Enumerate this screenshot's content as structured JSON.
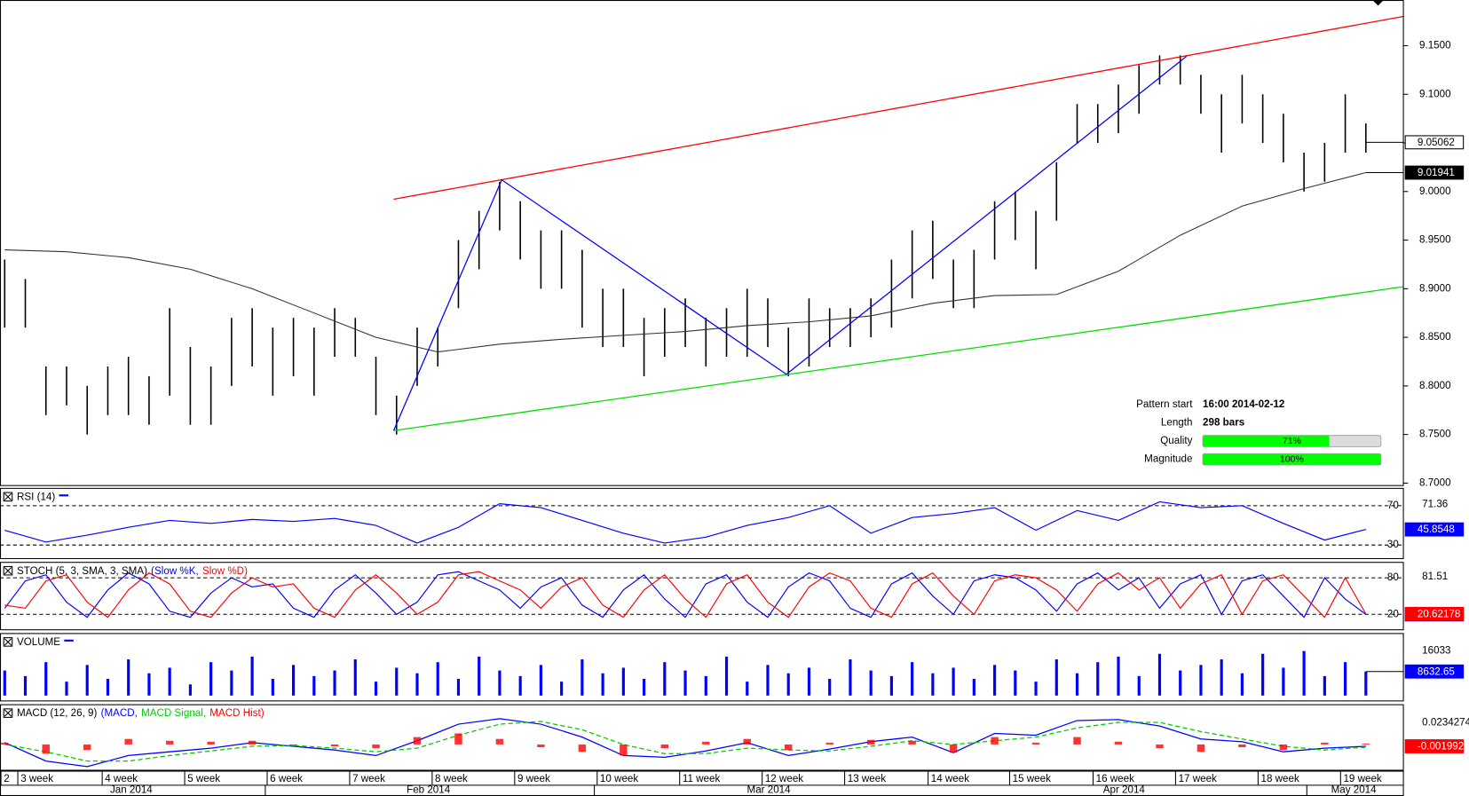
{
  "chart_data": [
    {
      "type": "ohlc",
      "ylim": [
        8.697,
        9.197
      ],
      "yticks": [
        {
          "value": 8.7,
          "label": "8.7000"
        },
        {
          "value": 8.75,
          "label": "8.7500"
        },
        {
          "value": 8.8,
          "label": "8.8000"
        },
        {
          "value": 8.85,
          "label": "8.8500"
        },
        {
          "value": 8.9,
          "label": "8.9000"
        },
        {
          "value": 8.95,
          "label": "8.9500"
        },
        {
          "value": 9.0,
          "label": "9.0000"
        },
        {
          "value": 9.05,
          "label": "9.0500"
        },
        {
          "value": 9.1,
          "label": "9.1000"
        },
        {
          "value": 9.15,
          "label": "9.1500"
        }
      ],
      "color": "#000000",
      "high": [
        8.93,
        8.91,
        8.82,
        8.82,
        8.8,
        8.82,
        8.83,
        8.81,
        8.88,
        8.84,
        8.82,
        8.87,
        8.88,
        8.86,
        8.87,
        8.86,
        8.88,
        8.87,
        8.83,
        8.79,
        8.86,
        8.86,
        8.95,
        8.98,
        9.01,
        8.99,
        8.96,
        8.96,
        8.94,
        8.9,
        8.9,
        8.87,
        8.88,
        8.89,
        8.87,
        8.88,
        8.9,
        8.89,
        8.86,
        8.89,
        8.88,
        8.88,
        8.89,
        8.93,
        8.96,
        8.97,
        8.93,
        8.94,
        8.99,
        9.0,
        8.98,
        9.03,
        9.09,
        9.09,
        9.11,
        9.13,
        9.14,
        9.14,
        9.12,
        9.1,
        9.12,
        9.1,
        9.08,
        9.04,
        9.05,
        9.1,
        9.07
      ],
      "low": [
        8.86,
        8.86,
        8.77,
        8.78,
        8.75,
        8.77,
        8.77,
        8.76,
        8.79,
        8.76,
        8.76,
        8.8,
        8.82,
        8.79,
        8.81,
        8.79,
        8.83,
        8.83,
        8.77,
        8.75,
        8.8,
        8.82,
        8.88,
        8.92,
        8.96,
        8.93,
        8.9,
        8.9,
        8.86,
        8.84,
        8.84,
        8.81,
        8.83,
        8.84,
        8.82,
        8.83,
        8.83,
        8.84,
        8.81,
        8.82,
        8.84,
        8.84,
        8.85,
        8.86,
        8.89,
        8.91,
        8.88,
        8.88,
        8.93,
        8.95,
        8.92,
        8.97,
        9.05,
        9.05,
        9.06,
        9.08,
        9.11,
        9.11,
        9.08,
        9.04,
        9.07,
        9.05,
        9.03,
        9.0,
        9.01,
        9.04,
        9.04
      ],
      "last": 9.05062,
      "ma": {
        "color": "#333333",
        "values": [
          8.94,
          8.938,
          8.932,
          8.92,
          8.9,
          8.875,
          8.85,
          8.835,
          8.843,
          8.848,
          8.852,
          8.856,
          8.862,
          8.866,
          8.872,
          8.885,
          8.893,
          8.894,
          8.918,
          8.955,
          8.985,
          9.003,
          9.01941
        ]
      },
      "trend_lines": [
        {
          "color": "#ff0000",
          "x": [
            18.86,
            67.8
          ],
          "y": [
            8.992,
            9.18
          ]
        },
        {
          "color": "#00dd00",
          "x": [
            18.86,
            67.8
          ],
          "y": [
            8.754,
            8.902
          ]
        },
        {
          "color": "#0000ff",
          "x": [
            18.86,
            24.1,
            37.9,
            57.3
          ],
          "y": [
            8.754,
            9.012,
            8.812,
            9.139
          ]
        }
      ]
    },
    {
      "type": "line",
      "title": "RSI (14)",
      "ylim": [
        15.7,
        88.1
      ],
      "yticks": [
        30,
        70
      ],
      "max": 71.36,
      "series": [
        {
          "color": "#0000ff",
          "values": [
            45,
            33,
            40,
            48,
            55,
            52,
            56,
            54,
            57,
            50,
            32,
            48,
            72,
            68,
            55,
            42,
            32,
            38,
            50,
            58,
            70,
            42,
            58,
            62,
            68,
            45,
            65,
            55,
            74,
            68,
            70,
            52,
            35,
            45.8548
          ]
        }
      ]
    },
    {
      "type": "line",
      "title": "STOCH (5, 3, SMA, 3, SMA)",
      "legend": [
        "(Slow %K,",
        "Slow %D)"
      ],
      "ylim": [
        -6.2,
        106.2
      ],
      "yticks": [
        20,
        80
      ],
      "max": 81.51,
      "series": [
        {
          "color": "#0000ff",
          "values": [
            30,
            75,
            85,
            40,
            15,
            60,
            88,
            70,
            25,
            15,
            55,
            80,
            65,
            70,
            30,
            15,
            60,
            85,
            55,
            20,
            40,
            85,
            90,
            75,
            60,
            30,
            65,
            80,
            35,
            15,
            60,
            85,
            45,
            15,
            70,
            85,
            40,
            15,
            65,
            88,
            75,
            30,
            15,
            70,
            88,
            50,
            20,
            75,
            85,
            80,
            60,
            25,
            70,
            88,
            60,
            80,
            30,
            70,
            85,
            20,
            75,
            85,
            50,
            15,
            80,
            45,
            19.8
          ]
        },
        {
          "color": "#ff0000",
          "values": [
            35,
            30,
            75,
            85,
            40,
            15,
            60,
            88,
            70,
            25,
            15,
            55,
            80,
            65,
            70,
            30,
            15,
            60,
            85,
            55,
            20,
            40,
            85,
            90,
            75,
            60,
            30,
            65,
            80,
            35,
            15,
            60,
            85,
            45,
            15,
            70,
            85,
            40,
            15,
            65,
            88,
            75,
            30,
            15,
            70,
            88,
            50,
            20,
            75,
            85,
            80,
            60,
            25,
            70,
            88,
            60,
            80,
            30,
            70,
            85,
            20,
            75,
            85,
            50,
            15,
            80,
            20.62178
          ]
        }
      ]
    },
    {
      "type": "bar",
      "title": "VOLUME",
      "ylim": [
        -2100,
        22450
      ],
      "max": 16033,
      "color": "#0000ff",
      "values": [
        9000,
        7000,
        12000,
        5000,
        11000,
        6000,
        13000,
        8000,
        10000,
        4000,
        12000,
        9000,
        14000,
        6000,
        11000,
        7000,
        9000,
        13000,
        5000,
        10000,
        8000,
        12000,
        6000,
        14000,
        9000,
        7000,
        11000,
        5000,
        13000,
        8000,
        10000,
        6000,
        12000,
        9000,
        7000,
        14000,
        5000,
        11000,
        8000,
        10000,
        6000,
        13000,
        9000,
        7000,
        12000,
        8000,
        10000,
        6000,
        11000,
        9000,
        5000,
        13000,
        8000,
        12000,
        14000,
        7000,
        15000,
        9000,
        11000,
        13000,
        8000,
        15000,
        10000,
        16000,
        7000,
        12000,
        8632.65
      ]
    },
    {
      "type": "combo",
      "title": "MACD (12, 26, 9)",
      "legend": [
        "(MACD,",
        "MACD Signal,",
        "MACD Hist)"
      ],
      "ylim": [
        -0.0285,
        0.0437
      ],
      "max": 0.0234274,
      "series": [
        {
          "type": "line",
          "color": "#0000ff",
          "values": [
            0.002,
            -0.018,
            -0.024,
            -0.012,
            -0.008,
            -0.004,
            0.002,
            -0.002,
            -0.006,
            -0.012,
            0.004,
            0.022,
            0.028,
            0.022,
            0.008,
            -0.012,
            -0.014,
            -0.007,
            0.002,
            -0.012,
            -0.005,
            0.003,
            0.008,
            -0.009,
            0.012,
            0.01,
            0.026,
            0.027,
            0.02,
            0.006,
            0.003,
            -0.008,
            -0.004,
            -0.0019929
          ]
        },
        {
          "type": "dashed",
          "color": "#00cc00",
          "values": [
            0.0,
            -0.008,
            -0.018,
            -0.018,
            -0.012,
            -0.007,
            -0.002,
            -0.001,
            -0.004,
            -0.008,
            -0.004,
            0.01,
            0.022,
            0.025,
            0.016,
            0.0,
            -0.01,
            -0.01,
            -0.004,
            -0.006,
            -0.007,
            -0.002,
            0.004,
            0.0,
            0.004,
            0.008,
            0.018,
            0.024,
            0.024,
            0.014,
            0.006,
            -0.002,
            -0.006,
            -0.003
          ]
        },
        {
          "type": "bar",
          "color": "#ff0000",
          "values": [
            0.002,
            -0.01,
            -0.006,
            0.006,
            0.004,
            0.003,
            0.004,
            -0.001,
            -0.002,
            -0.004,
            0.008,
            0.012,
            0.006,
            -0.003,
            -0.008,
            -0.012,
            -0.004,
            0.003,
            0.006,
            -0.006,
            0.002,
            0.005,
            0.004,
            -0.009,
            0.008,
            0.002,
            0.008,
            0.003,
            -0.004,
            -0.008,
            -0.003,
            -0.006,
            0.002,
            0.001
          ]
        }
      ]
    }
  ],
  "x_axis": {
    "weeks": [
      "2",
      "3 week",
      "4 week",
      "5 week",
      "6 week",
      "7 week",
      "8 week",
      "9 week",
      "10 week",
      "11 week",
      "12 week",
      "13 week",
      "14 week",
      "15 week",
      "16 week",
      "17 week",
      "18 week",
      "19 week"
    ],
    "months": [
      "Jan 2014",
      "Feb 2014",
      "Mar 2014",
      "Apr 2014",
      "May 2014"
    ]
  },
  "pattern": {
    "rows": [
      {
        "label": "Pattern start",
        "value": "16:00 2014-02-12"
      },
      {
        "label": "Length",
        "value": "298 bars"
      }
    ],
    "bars": [
      {
        "label": "Quality",
        "value": 71,
        "value_label": "71%"
      },
      {
        "label": "Magnitude",
        "value": 100,
        "value_label": "100%"
      }
    ],
    "fill": "#00ff00"
  }
}
